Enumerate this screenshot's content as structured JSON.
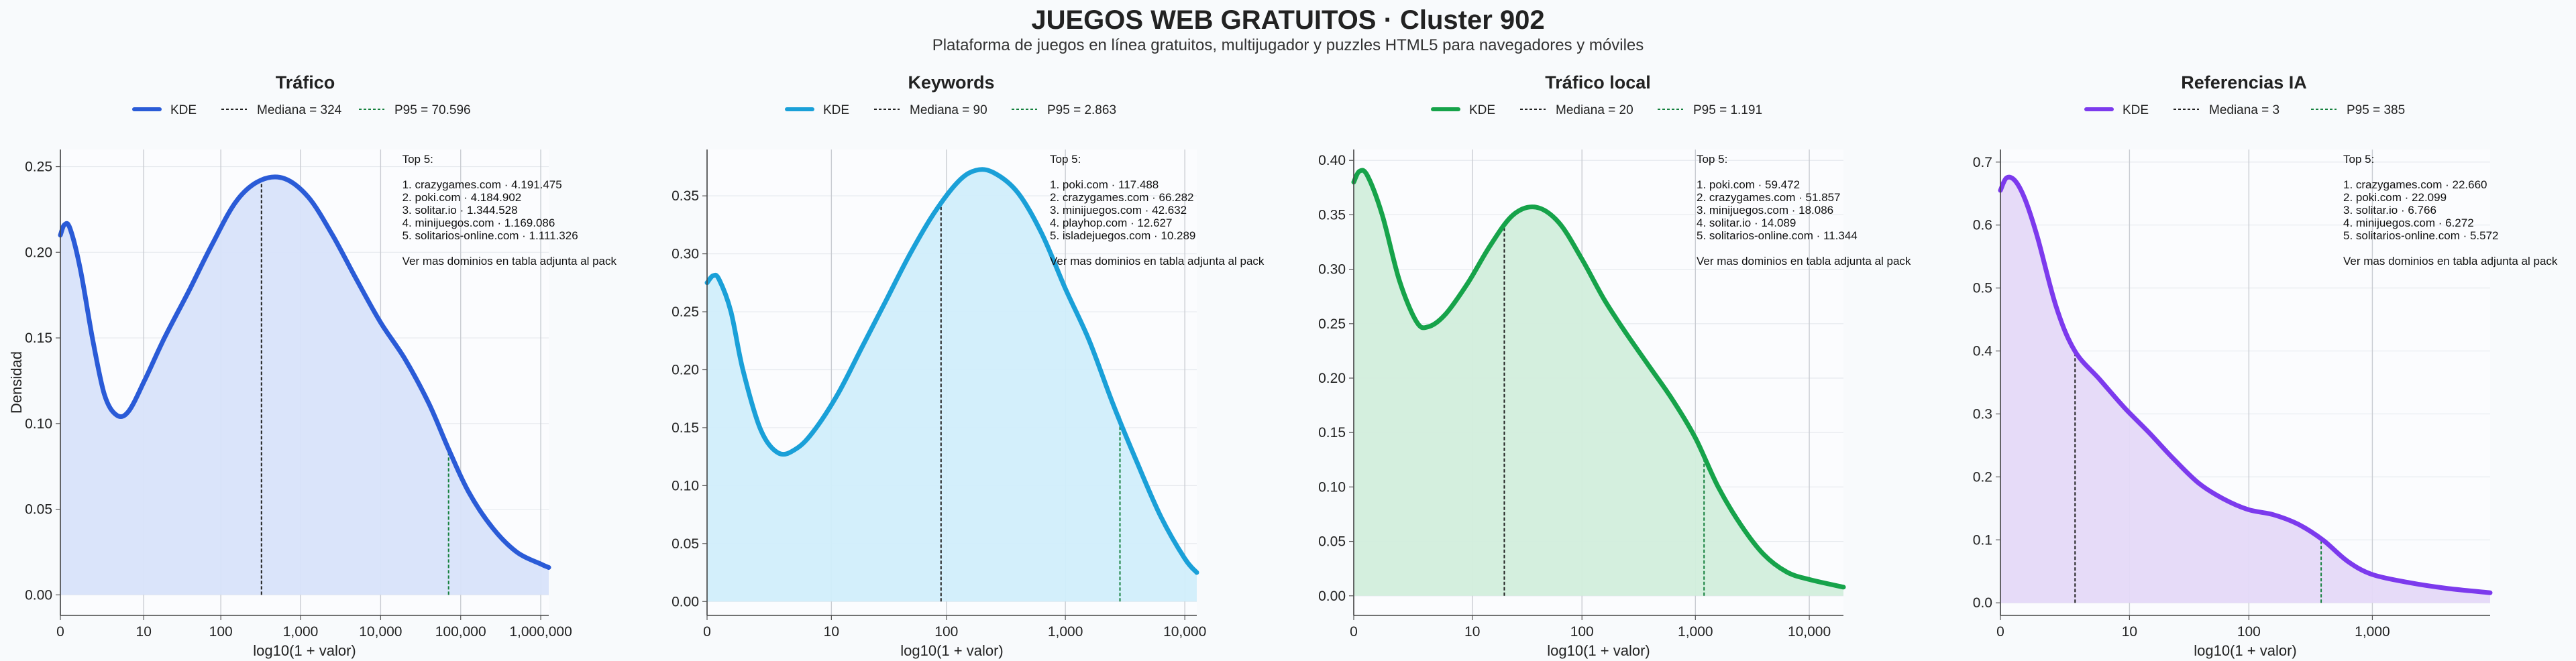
{
  "header": {
    "title": "JUEGOS WEB GRATUITOS · Cluster 902",
    "subtitle": "Plataforma de juegos en línea gratuitos, multijugador y puzzles HTML5 para navegadores y móviles"
  },
  "chart_data": [
    {
      "type": "area",
      "title": "Tráfico",
      "color": "#2a5bd7",
      "fill": "#d8e3fa",
      "legend": [
        "KDE",
        "Mediana = 324",
        "P95 = 70.596"
      ],
      "xlabel": "log10(1 + valor)",
      "ylabel": "Densidad",
      "xlim": [
        0,
        6.1
      ],
      "ylim": [
        -0.012,
        0.26
      ],
      "x_ticks": [
        [
          0,
          "0"
        ],
        [
          1.041,
          "10"
        ],
        [
          2.004,
          "100"
        ],
        [
          3.0,
          "1,000"
        ],
        [
          4.0,
          "10,000"
        ],
        [
          5.0,
          "100,000"
        ],
        [
          6.0,
          "1,000,000"
        ]
      ],
      "y_ticks": [
        [
          0,
          "0.00"
        ],
        [
          0.05,
          "0.05"
        ],
        [
          0.1,
          "0.10"
        ],
        [
          0.15,
          "0.15"
        ],
        [
          0.2,
          "0.20"
        ],
        [
          0.25,
          "0.25"
        ]
      ],
      "median": 2.512,
      "p95": 4.849,
      "curve": [
        [
          0,
          0.21
        ],
        [
          0.05,
          0.216
        ],
        [
          0.12,
          0.214
        ],
        [
          0.25,
          0.19
        ],
        [
          0.4,
          0.15
        ],
        [
          0.55,
          0.117
        ],
        [
          0.7,
          0.105
        ],
        [
          0.85,
          0.107
        ],
        [
          1.05,
          0.125
        ],
        [
          1.3,
          0.15
        ],
        [
          1.6,
          0.177
        ],
        [
          1.9,
          0.205
        ],
        [
          2.2,
          0.23
        ],
        [
          2.5,
          0.242
        ],
        [
          2.8,
          0.243
        ],
        [
          3.1,
          0.232
        ],
        [
          3.4,
          0.21
        ],
        [
          3.7,
          0.184
        ],
        [
          4.0,
          0.159
        ],
        [
          4.3,
          0.138
        ],
        [
          4.6,
          0.112
        ],
        [
          4.85,
          0.085
        ],
        [
          5.1,
          0.06
        ],
        [
          5.4,
          0.039
        ],
        [
          5.7,
          0.025
        ],
        [
          6.0,
          0.018
        ],
        [
          6.1,
          0.016
        ]
      ],
      "annotation": [
        "Top 5:",
        "",
        "1. crazygames.com · 4.191.475",
        "2. poki.com · 4.184.902",
        "3. solitar.io · 1.344.528",
        "4. minijuegos.com · 1.169.086",
        "5. solitarios-online.com · 1.111.326",
        "",
        "Ver mas dominios en tabla adjunta al pack"
      ]
    },
    {
      "type": "area",
      "title": "Keywords",
      "color": "#1aa0d8",
      "fill": "#d1eefb",
      "legend": [
        "KDE",
        "Mediana = 90",
        "P95 = 2.863"
      ],
      "xlabel": "log10(1 + valor)",
      "ylabel": "",
      "xlim": [
        0,
        4.1
      ],
      "ylim": [
        -0.012,
        0.39
      ],
      "x_ticks": [
        [
          0,
          "0"
        ],
        [
          1.041,
          "10"
        ],
        [
          2.004,
          "100"
        ],
        [
          3.0,
          "1,000"
        ],
        [
          4.0,
          "10,000"
        ]
      ],
      "y_ticks": [
        [
          0,
          "0.00"
        ],
        [
          0.05,
          "0.05"
        ],
        [
          0.1,
          "0.10"
        ],
        [
          0.15,
          "0.15"
        ],
        [
          0.2,
          "0.20"
        ],
        [
          0.25,
          "0.25"
        ],
        [
          0.3,
          "0.30"
        ],
        [
          0.35,
          "0.35"
        ]
      ],
      "median": 1.959,
      "p95": 3.457,
      "curve": [
        [
          0,
          0.275
        ],
        [
          0.05,
          0.281
        ],
        [
          0.1,
          0.278
        ],
        [
          0.2,
          0.25
        ],
        [
          0.3,
          0.2
        ],
        [
          0.45,
          0.148
        ],
        [
          0.6,
          0.128
        ],
        [
          0.75,
          0.132
        ],
        [
          0.9,
          0.148
        ],
        [
          1.1,
          0.18
        ],
        [
          1.3,
          0.22
        ],
        [
          1.5,
          0.26
        ],
        [
          1.7,
          0.3
        ],
        [
          1.9,
          0.335
        ],
        [
          2.1,
          0.362
        ],
        [
          2.25,
          0.372
        ],
        [
          2.4,
          0.37
        ],
        [
          2.6,
          0.353
        ],
        [
          2.8,
          0.318
        ],
        [
          3.0,
          0.27
        ],
        [
          3.2,
          0.225
        ],
        [
          3.4,
          0.17
        ],
        [
          3.6,
          0.12
        ],
        [
          3.8,
          0.073
        ],
        [
          4.0,
          0.037
        ],
        [
          4.1,
          0.025
        ]
      ],
      "annotation": [
        "Top 5:",
        "",
        "1. poki.com · 117.488",
        "2. crazygames.com · 66.282",
        "3. minijuegos.com · 42.632",
        "4. playhop.com · 12.627",
        "5. isladejuegos.com · 10.289",
        "",
        "Ver mas dominios en tabla adjunta al pack"
      ]
    },
    {
      "type": "area",
      "title": "Tráfico local",
      "color": "#16a34a",
      "fill": "#d2eedc",
      "legend": [
        "KDE",
        "Mediana = 20",
        "P95 = 1.191"
      ],
      "xlabel": "log10(1 + valor)",
      "ylabel": "",
      "xlim": [
        0,
        4.3
      ],
      "ylim": [
        -0.018,
        0.41
      ],
      "x_ticks": [
        [
          0,
          "0"
        ],
        [
          1.041,
          "10"
        ],
        [
          2.004,
          "100"
        ],
        [
          3.0,
          "1,000"
        ],
        [
          4.0,
          "10,000"
        ]
      ],
      "y_ticks": [
        [
          0,
          "0.00"
        ],
        [
          0.05,
          "0.05"
        ],
        [
          0.1,
          "0.10"
        ],
        [
          0.15,
          "0.15"
        ],
        [
          0.2,
          "0.20"
        ],
        [
          0.25,
          "0.25"
        ],
        [
          0.3,
          "0.30"
        ],
        [
          0.35,
          "0.35"
        ],
        [
          0.4,
          "0.40"
        ]
      ],
      "median": 1.322,
      "p95": 3.076,
      "curve": [
        [
          0,
          0.38
        ],
        [
          0.05,
          0.39
        ],
        [
          0.12,
          0.386
        ],
        [
          0.25,
          0.35
        ],
        [
          0.4,
          0.29
        ],
        [
          0.55,
          0.252
        ],
        [
          0.65,
          0.247
        ],
        [
          0.8,
          0.258
        ],
        [
          1.0,
          0.287
        ],
        [
          1.2,
          0.322
        ],
        [
          1.4,
          0.35
        ],
        [
          1.6,
          0.357
        ],
        [
          1.8,
          0.343
        ],
        [
          2.0,
          0.31
        ],
        [
          2.2,
          0.272
        ],
        [
          2.4,
          0.24
        ],
        [
          2.6,
          0.21
        ],
        [
          2.8,
          0.18
        ],
        [
          3.0,
          0.145
        ],
        [
          3.2,
          0.1
        ],
        [
          3.4,
          0.065
        ],
        [
          3.6,
          0.038
        ],
        [
          3.8,
          0.022
        ],
        [
          4.0,
          0.015
        ],
        [
          4.3,
          0.008
        ]
      ],
      "annotation": [
        "Top 5:",
        "",
        "1. poki.com · 59.472",
        "2. crazygames.com · 51.857",
        "3. minijuegos.com · 18.086",
        "4. solitar.io · 14.089",
        "5. solitarios-online.com · 11.344",
        "",
        "Ver mas dominios en tabla adjunta al pack"
      ]
    },
    {
      "type": "area",
      "title": "Referencias IA",
      "color": "#7c3aed",
      "fill": "#e5d9f8",
      "legend": [
        "KDE",
        "Mediana = 3",
        "P95 = 385"
      ],
      "xlabel": "log10(1 + valor)",
      "ylabel": "",
      "xlim": [
        0,
        3.95
      ],
      "ylim": [
        -0.02,
        0.72
      ],
      "x_ticks": [
        [
          0,
          "0"
        ],
        [
          1.041,
          "10"
        ],
        [
          2.004,
          "100"
        ],
        [
          3.0,
          "1,000"
        ]
      ],
      "y_ticks": [
        [
          0,
          "0.0"
        ],
        [
          0.1,
          "0.1"
        ],
        [
          0.2,
          "0.2"
        ],
        [
          0.3,
          "0.3"
        ],
        [
          0.4,
          "0.4"
        ],
        [
          0.5,
          "0.5"
        ],
        [
          0.6,
          "0.6"
        ],
        [
          0.7,
          "0.7"
        ]
      ],
      "median": 0.602,
      "p95": 2.587,
      "curve": [
        [
          0,
          0.655
        ],
        [
          0.05,
          0.675
        ],
        [
          0.12,
          0.67
        ],
        [
          0.2,
          0.64
        ],
        [
          0.3,
          0.58
        ],
        [
          0.45,
          0.47
        ],
        [
          0.6,
          0.4
        ],
        [
          0.8,
          0.355
        ],
        [
          1.0,
          0.31
        ],
        [
          1.2,
          0.27
        ],
        [
          1.4,
          0.228
        ],
        [
          1.6,
          0.19
        ],
        [
          1.8,
          0.165
        ],
        [
          2.0,
          0.148
        ],
        [
          2.2,
          0.14
        ],
        [
          2.4,
          0.125
        ],
        [
          2.6,
          0.1
        ],
        [
          2.8,
          0.066
        ],
        [
          3.0,
          0.045
        ],
        [
          3.3,
          0.032
        ],
        [
          3.6,
          0.023
        ],
        [
          3.95,
          0.016
        ]
      ],
      "annotation": [
        "Top 5:",
        "",
        "1. crazygames.com · 22.660",
        "2. poki.com · 22.099",
        "3. solitar.io · 6.766",
        "4. minijuegos.com · 6.272",
        "5. solitarios-online.com · 5.572",
        "",
        "Ver mas dominios en tabla adjunta al pack"
      ]
    }
  ]
}
